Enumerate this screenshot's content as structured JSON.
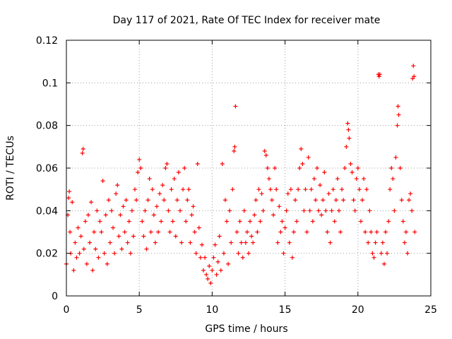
{
  "chart_data": {
    "type": "scatter",
    "title": "Day 117 of 2021, Rate Of TEC Index for receiver mate",
    "xlabel": "GPS time / hours",
    "ylabel": "ROTI / TECUs",
    "xlim": [
      0,
      25
    ],
    "ylim": [
      0,
      0.12
    ],
    "xticks": [
      0,
      5,
      10,
      15,
      20,
      25
    ],
    "xtick_labels": [
      "0",
      "5",
      "10",
      "15",
      "20",
      "25"
    ],
    "yticks": [
      0,
      0.02,
      0.04,
      0.06,
      0.08,
      0.1,
      0.12
    ],
    "ytick_labels": [
      "0",
      "0.02",
      "0.04",
      "0.06",
      "0.08",
      "0.1",
      "0.12"
    ],
    "grid": true,
    "marker": "+",
    "color": "#ff0000",
    "series": [
      {
        "points": [
          [
            0.0,
            0.015
          ],
          [
            0.1,
            0.038
          ],
          [
            0.15,
            0.046
          ],
          [
            0.2,
            0.049
          ],
          [
            0.25,
            0.03
          ],
          [
            0.3,
            0.02
          ],
          [
            0.4,
            0.044
          ],
          [
            0.5,
            0.012
          ],
          [
            0.6,
            0.025
          ],
          [
            0.7,
            0.018
          ],
          [
            0.8,
            0.032
          ],
          [
            0.9,
            0.02
          ],
          [
            1.0,
            0.028
          ],
          [
            1.1,
            0.067
          ],
          [
            1.15,
            0.069
          ],
          [
            1.2,
            0.022
          ],
          [
            1.3,
            0.035
          ],
          [
            1.4,
            0.015
          ],
          [
            1.5,
            0.038
          ],
          [
            1.6,
            0.025
          ],
          [
            1.7,
            0.044
          ],
          [
            1.8,
            0.012
          ],
          [
            1.9,
            0.03
          ],
          [
            2.0,
            0.022
          ],
          [
            2.1,
            0.04
          ],
          [
            2.2,
            0.018
          ],
          [
            2.3,
            0.035
          ],
          [
            2.4,
            0.03
          ],
          [
            2.5,
            0.054
          ],
          [
            2.6,
            0.02
          ],
          [
            2.7,
            0.038
          ],
          [
            2.8,
            0.015
          ],
          [
            2.9,
            0.045
          ],
          [
            3.0,
            0.025
          ],
          [
            3.1,
            0.04
          ],
          [
            3.2,
            0.032
          ],
          [
            3.3,
            0.02
          ],
          [
            3.4,
            0.048
          ],
          [
            3.5,
            0.052
          ],
          [
            3.6,
            0.028
          ],
          [
            3.7,
            0.038
          ],
          [
            3.8,
            0.022
          ],
          [
            3.9,
            0.042
          ],
          [
            4.0,
            0.03
          ],
          [
            4.1,
            0.045
          ],
          [
            4.2,
            0.025
          ],
          [
            4.3,
            0.035
          ],
          [
            4.4,
            0.02
          ],
          [
            4.5,
            0.04
          ],
          [
            4.6,
            0.028
          ],
          [
            4.7,
            0.05
          ],
          [
            4.8,
            0.045
          ],
          [
            4.9,
            0.058
          ],
          [
            5.0,
            0.064
          ],
          [
            5.1,
            0.06
          ],
          [
            5.2,
            0.035
          ],
          [
            5.3,
            0.028
          ],
          [
            5.4,
            0.04
          ],
          [
            5.5,
            0.022
          ],
          [
            5.6,
            0.045
          ],
          [
            5.7,
            0.055
          ],
          [
            5.8,
            0.03
          ],
          [
            5.9,
            0.05
          ],
          [
            6.0,
            0.038
          ],
          [
            6.1,
            0.025
          ],
          [
            6.2,
            0.042
          ],
          [
            6.3,
            0.03
          ],
          [
            6.4,
            0.048
          ],
          [
            6.5,
            0.035
          ],
          [
            6.6,
            0.052
          ],
          [
            6.7,
            0.045
          ],
          [
            6.8,
            0.06
          ],
          [
            6.9,
            0.062
          ],
          [
            7.0,
            0.04
          ],
          [
            7.1,
            0.03
          ],
          [
            7.2,
            0.05
          ],
          [
            7.3,
            0.035
          ],
          [
            7.4,
            0.055
          ],
          [
            7.5,
            0.028
          ],
          [
            7.6,
            0.045
          ],
          [
            7.7,
            0.058
          ],
          [
            7.8,
            0.04
          ],
          [
            7.9,
            0.025
          ],
          [
            8.0,
            0.05
          ],
          [
            8.1,
            0.06
          ],
          [
            8.2,
            0.035
          ],
          [
            8.3,
            0.045
          ],
          [
            8.4,
            0.05
          ],
          [
            8.5,
            0.025
          ],
          [
            8.6,
            0.038
          ],
          [
            8.7,
            0.042
          ],
          [
            8.8,
            0.03
          ],
          [
            8.9,
            0.02
          ],
          [
            9.0,
            0.062
          ],
          [
            9.1,
            0.032
          ],
          [
            9.2,
            0.018
          ],
          [
            9.3,
            0.024
          ],
          [
            9.4,
            0.012
          ],
          [
            9.5,
            0.018
          ],
          [
            9.6,
            0.01
          ],
          [
            9.7,
            0.008
          ],
          [
            9.8,
            0.014
          ],
          [
            9.9,
            0.006
          ],
          [
            10.0,
            0.012
          ],
          [
            10.1,
            0.018
          ],
          [
            10.2,
            0.024
          ],
          [
            10.3,
            0.01
          ],
          [
            10.4,
            0.016
          ],
          [
            10.5,
            0.028
          ],
          [
            10.6,
            0.012
          ],
          [
            10.7,
            0.062
          ],
          [
            10.8,
            0.02
          ],
          [
            10.9,
            0.045
          ],
          [
            11.0,
            0.035
          ],
          [
            11.1,
            0.015
          ],
          [
            11.2,
            0.04
          ],
          [
            11.3,
            0.025
          ],
          [
            11.4,
            0.05
          ],
          [
            11.5,
            0.068
          ],
          [
            11.55,
            0.07
          ],
          [
            11.6,
            0.089
          ],
          [
            11.7,
            0.03
          ],
          [
            11.8,
            0.02
          ],
          [
            11.9,
            0.035
          ],
          [
            12.0,
            0.025
          ],
          [
            12.1,
            0.018
          ],
          [
            12.2,
            0.04
          ],
          [
            12.3,
            0.025
          ],
          [
            12.4,
            0.03
          ],
          [
            12.5,
            0.02
          ],
          [
            12.6,
            0.035
          ],
          [
            12.7,
            0.028
          ],
          [
            12.8,
            0.025
          ],
          [
            12.9,
            0.038
          ],
          [
            13.0,
            0.045
          ],
          [
            13.1,
            0.03
          ],
          [
            13.2,
            0.05
          ],
          [
            13.3,
            0.035
          ],
          [
            13.4,
            0.048
          ],
          [
            13.5,
            0.04
          ],
          [
            13.6,
            0.068
          ],
          [
            13.7,
            0.066
          ],
          [
            13.8,
            0.06
          ],
          [
            13.9,
            0.055
          ],
          [
            14.0,
            0.05
          ],
          [
            14.1,
            0.045
          ],
          [
            14.2,
            0.038
          ],
          [
            14.3,
            0.06
          ],
          [
            14.4,
            0.05
          ],
          [
            14.5,
            0.025
          ],
          [
            14.6,
            0.042
          ],
          [
            14.7,
            0.03
          ],
          [
            14.8,
            0.035
          ],
          [
            14.9,
            0.02
          ],
          [
            15.0,
            0.032
          ],
          [
            15.1,
            0.04
          ],
          [
            15.2,
            0.048
          ],
          [
            15.3,
            0.025
          ],
          [
            15.4,
            0.05
          ],
          [
            15.5,
            0.018
          ],
          [
            15.6,
            0.03
          ],
          [
            15.7,
            0.045
          ],
          [
            15.8,
            0.035
          ],
          [
            15.9,
            0.05
          ],
          [
            16.0,
            0.06
          ],
          [
            16.1,
            0.069
          ],
          [
            16.2,
            0.062
          ],
          [
            16.3,
            0.04
          ],
          [
            16.4,
            0.05
          ],
          [
            16.5,
            0.03
          ],
          [
            16.6,
            0.065
          ],
          [
            16.7,
            0.04
          ],
          [
            16.8,
            0.05
          ],
          [
            16.9,
            0.035
          ],
          [
            17.0,
            0.055
          ],
          [
            17.1,
            0.045
          ],
          [
            17.2,
            0.06
          ],
          [
            17.3,
            0.04
          ],
          [
            17.4,
            0.052
          ],
          [
            17.5,
            0.038
          ],
          [
            17.6,
            0.045
          ],
          [
            17.7,
            0.058
          ],
          [
            17.8,
            0.04
          ],
          [
            17.9,
            0.03
          ],
          [
            18.0,
            0.048
          ],
          [
            18.1,
            0.025
          ],
          [
            18.2,
            0.04
          ],
          [
            18.3,
            0.05
          ],
          [
            18.4,
            0.035
          ],
          [
            18.5,
            0.045
          ],
          [
            18.6,
            0.055
          ],
          [
            18.7,
            0.04
          ],
          [
            18.8,
            0.03
          ],
          [
            18.9,
            0.05
          ],
          [
            19.0,
            0.045
          ],
          [
            19.1,
            0.06
          ],
          [
            19.2,
            0.07
          ],
          [
            19.3,
            0.081
          ],
          [
            19.35,
            0.078
          ],
          [
            19.4,
            0.074
          ],
          [
            19.5,
            0.062
          ],
          [
            19.6,
            0.058
          ],
          [
            19.7,
            0.045
          ],
          [
            19.8,
            0.04
          ],
          [
            19.9,
            0.055
          ],
          [
            20.0,
            0.06
          ],
          [
            20.1,
            0.05
          ],
          [
            20.2,
            0.035
          ],
          [
            20.3,
            0.045
          ],
          [
            20.4,
            0.055
          ],
          [
            20.5,
            0.03
          ],
          [
            20.6,
            0.05
          ],
          [
            20.7,
            0.025
          ],
          [
            20.8,
            0.04
          ],
          [
            20.9,
            0.03
          ],
          [
            21.0,
            0.02
          ],
          [
            21.1,
            0.018
          ],
          [
            21.2,
            0.025
          ],
          [
            21.3,
            0.03
          ],
          [
            21.4,
            0.104
          ],
          [
            21.45,
            0.103
          ],
          [
            21.5,
            0.104
          ],
          [
            21.6,
            0.02
          ],
          [
            21.7,
            0.025
          ],
          [
            21.8,
            0.015
          ],
          [
            21.9,
            0.03
          ],
          [
            22.0,
            0.02
          ],
          [
            22.1,
            0.035
          ],
          [
            22.2,
            0.05
          ],
          [
            22.3,
            0.06
          ],
          [
            22.4,
            0.055
          ],
          [
            22.5,
            0.04
          ],
          [
            22.6,
            0.065
          ],
          [
            22.7,
            0.08
          ],
          [
            22.75,
            0.089
          ],
          [
            22.8,
            0.085
          ],
          [
            22.9,
            0.06
          ],
          [
            23.0,
            0.045
          ],
          [
            23.1,
            0.035
          ],
          [
            23.2,
            0.025
          ],
          [
            23.3,
            0.03
          ],
          [
            23.4,
            0.02
          ],
          [
            23.5,
            0.045
          ],
          [
            23.6,
            0.048
          ],
          [
            23.7,
            0.04
          ],
          [
            23.75,
            0.102
          ],
          [
            23.8,
            0.108
          ],
          [
            23.85,
            0.103
          ],
          [
            23.9,
            0.03
          ]
        ]
      }
    ]
  }
}
